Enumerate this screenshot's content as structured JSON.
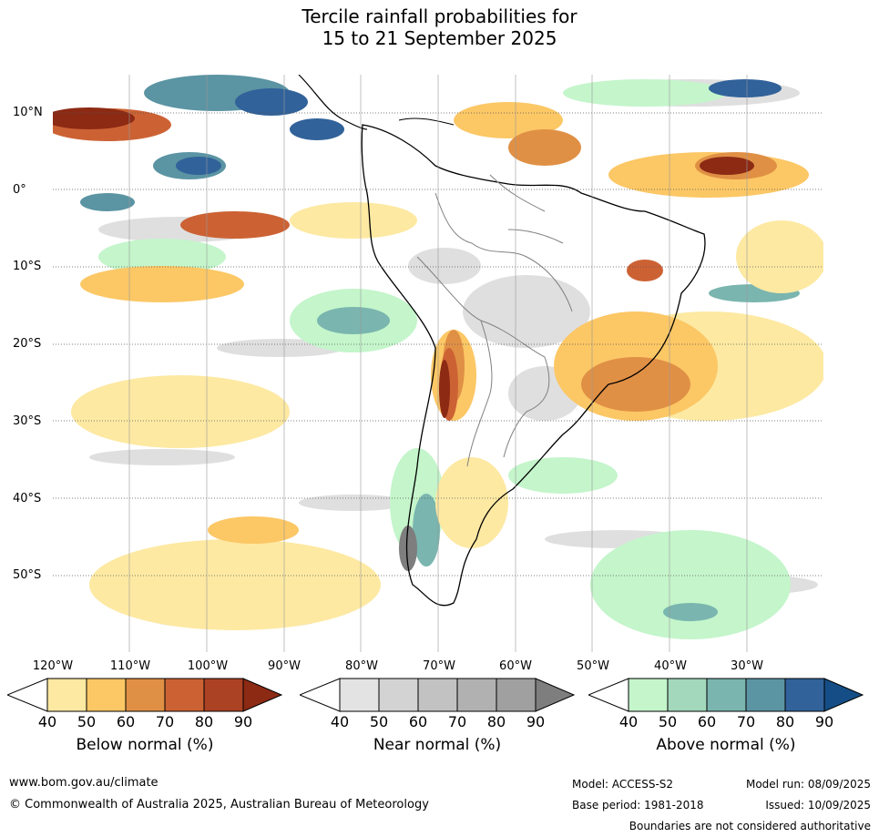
{
  "title_line1": "Tercile rainfall probabilities for",
  "title_line2": "15 to 21 September 2025",
  "lat_labels": [
    "10°N",
    "0°",
    "10°S",
    "20°S",
    "30°S",
    "40°S",
    "50°S"
  ],
  "lon_labels": [
    "120°W",
    "110°W",
    "100°W",
    "90°W",
    "80°W",
    "70°W",
    "60°W",
    "50°W",
    "40°W",
    "30°W"
  ],
  "colorbars": [
    {
      "title": "Below normal (%)",
      "ticks": [
        "40",
        "50",
        "60",
        "70",
        "80",
        "90"
      ],
      "colors": [
        "#ffffff",
        "#fde9a2",
        "#fcc765",
        "#e09045",
        "#cc6234",
        "#ac4224",
        "#8c2a14"
      ]
    },
    {
      "title": "Near normal (%)",
      "ticks": [
        "40",
        "50",
        "60",
        "70",
        "80",
        "90"
      ],
      "colors": [
        "#ffffff",
        "#e3e3e3",
        "#d3d3d3",
        "#c2c2c2",
        "#b1b1b1",
        "#a0a0a0",
        "#7e7e7e"
      ]
    },
    {
      "title": "Above normal (%)",
      "ticks": [
        "40",
        "50",
        "60",
        "70",
        "80",
        "90"
      ],
      "colors": [
        "#ffffff",
        "#c4f5cb",
        "#a3d8bc",
        "#7ab5af",
        "#5b94a3",
        "#31629a",
        "#154e86"
      ]
    }
  ],
  "footer": {
    "url": "www.bom.gov.au/climate",
    "copyright": "© Commonwealth of Australia 2025, Australian Bureau of Meteorology",
    "model": "Model: ACCESS-S2",
    "model_run": "Model run: 08/09/2025",
    "base_period": "Base period: 1981-2018",
    "issued": "Issued: 10/09/2025",
    "disclaimer": "Boundaries are not considered authoritative"
  }
}
